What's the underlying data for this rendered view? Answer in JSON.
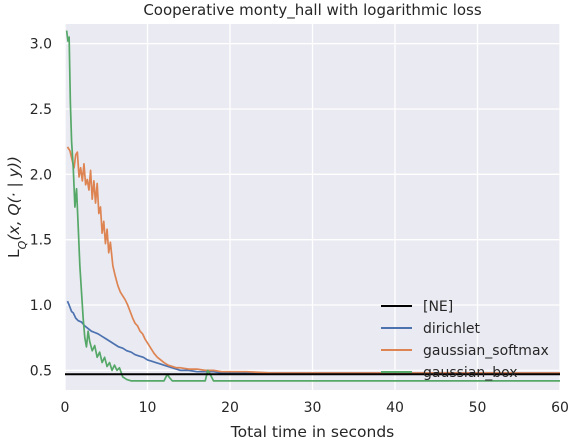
{
  "chart_data": {
    "type": "line",
    "title": "Cooperative monty_hall with logarithmic loss",
    "xlabel": "Total time in seconds",
    "ylabel": "L_Q(x, Q(· | y))",
    "xlim": [
      0,
      60
    ],
    "ylim": [
      0.35,
      3.15
    ],
    "x_ticks": [
      0,
      10,
      20,
      30,
      40,
      50,
      60
    ],
    "y_ticks": [
      0.5,
      1.0,
      1.5,
      2.0,
      2.5,
      3.0
    ],
    "x_tick_labels": [
      "0",
      "10",
      "20",
      "30",
      "40",
      "50",
      "60"
    ],
    "y_tick_labels": [
      "0.5",
      "1.0",
      "1.5",
      "2.0",
      "2.5",
      "3.0"
    ],
    "grid": true,
    "legend_position": "lower-right",
    "series": [
      {
        "name": "[NE]",
        "color": "#000000",
        "x": [
          0,
          60
        ],
        "y": [
          0.47,
          0.47
        ]
      },
      {
        "name": "dirichlet",
        "color": "#4c72b0",
        "x": [
          0.3,
          0.5,
          0.8,
          1.0,
          1.3,
          1.6,
          2.0,
          2.4,
          2.8,
          3.2,
          3.6,
          4.0,
          4.5,
          5.0,
          5.5,
          6.0,
          6.5,
          7.0,
          7.5,
          8.0,
          8.5,
          9.0,
          9.5,
          10.0,
          10.5,
          11.0,
          11.5,
          12.0,
          13.0,
          14.0,
          15.0,
          16.0,
          17.0,
          18.0,
          19.0,
          20.0,
          22.0,
          25.0,
          30.0,
          35.0,
          40.0,
          45.0,
          50.0,
          55.0,
          60.0
        ],
        "y": [
          1.03,
          1.0,
          0.95,
          0.94,
          0.9,
          0.88,
          0.87,
          0.84,
          0.82,
          0.8,
          0.79,
          0.78,
          0.76,
          0.74,
          0.72,
          0.7,
          0.68,
          0.67,
          0.65,
          0.64,
          0.62,
          0.61,
          0.6,
          0.58,
          0.57,
          0.56,
          0.55,
          0.54,
          0.52,
          0.5,
          0.5,
          0.49,
          0.49,
          0.49,
          0.48,
          0.48,
          0.48,
          0.48,
          0.48,
          0.48,
          0.48,
          0.48,
          0.48,
          0.48,
          0.48
        ]
      },
      {
        "name": "gaussian_softmax",
        "color": "#dd8452",
        "x": [
          0.3,
          0.6,
          0.9,
          1.1,
          1.3,
          1.5,
          1.7,
          1.9,
          2.1,
          2.3,
          2.5,
          2.7,
          2.9,
          3.1,
          3.3,
          3.5,
          3.7,
          3.9,
          4.1,
          4.3,
          4.5,
          4.7,
          4.9,
          5.1,
          5.3,
          5.5,
          5.8,
          6.1,
          6.4,
          6.7,
          7.0,
          7.3,
          7.6,
          7.9,
          8.2,
          8.5,
          8.8,
          9.1,
          9.4,
          9.7,
          10.0,
          10.4,
          10.8,
          11.2,
          11.6,
          12.0,
          12.5,
          13.0,
          13.5,
          14.0,
          15.0,
          16.0,
          17.0,
          18.0,
          19.0,
          20.0,
          22.0,
          25.0,
          30.0,
          35.0,
          40.0,
          45.0,
          50.0,
          55.0,
          60.0
        ],
        "y": [
          2.21,
          2.18,
          2.1,
          2.05,
          2.15,
          2.17,
          1.98,
          2.05,
          1.95,
          2.08,
          1.92,
          1.96,
          1.88,
          2.03,
          1.81,
          1.95,
          1.78,
          1.93,
          1.7,
          1.75,
          1.55,
          1.64,
          1.47,
          1.58,
          1.4,
          1.48,
          1.3,
          1.22,
          1.15,
          1.1,
          1.07,
          1.04,
          1.0,
          0.95,
          0.9,
          0.86,
          0.84,
          0.8,
          0.78,
          0.74,
          0.71,
          0.67,
          0.63,
          0.6,
          0.58,
          0.56,
          0.54,
          0.53,
          0.52,
          0.52,
          0.51,
          0.51,
          0.5,
          0.5,
          0.49,
          0.49,
          0.49,
          0.48,
          0.48,
          0.48,
          0.48,
          0.48,
          0.48,
          0.48,
          0.48
        ]
      },
      {
        "name": "gaussian_box",
        "color": "#55a868",
        "x": [
          0.2,
          0.35,
          0.5,
          0.65,
          0.8,
          1.0,
          1.2,
          1.4,
          1.6,
          1.8,
          2.0,
          2.2,
          2.4,
          2.6,
          2.8,
          3.0,
          3.3,
          3.6,
          3.9,
          4.2,
          4.5,
          4.8,
          5.1,
          5.4,
          5.7,
          6.0,
          6.3,
          6.6,
          7.0,
          7.5,
          8.0,
          9.0,
          10.0,
          11.0,
          12.0,
          12.4,
          12.6,
          13.0,
          14.0,
          15.0,
          16.0,
          17.0,
          17.3,
          17.6,
          18.0,
          19.0,
          20.0,
          25.0,
          30.0,
          35.0,
          40.0,
          45.0,
          50.0,
          55.0,
          60.0
        ],
        "y": [
          3.1,
          3.02,
          3.05,
          2.55,
          2.25,
          2.05,
          1.75,
          1.89,
          1.6,
          1.3,
          1.1,
          0.9,
          0.75,
          0.68,
          0.8,
          0.72,
          0.65,
          0.69,
          0.6,
          0.64,
          0.56,
          0.6,
          0.53,
          0.56,
          0.5,
          0.54,
          0.5,
          0.52,
          0.45,
          0.43,
          0.42,
          0.42,
          0.42,
          0.42,
          0.42,
          0.47,
          0.45,
          0.42,
          0.42,
          0.42,
          0.42,
          0.42,
          0.5,
          0.47,
          0.42,
          0.42,
          0.42,
          0.42,
          0.42,
          0.42,
          0.42,
          0.42,
          0.42,
          0.42,
          0.42
        ]
      }
    ]
  }
}
